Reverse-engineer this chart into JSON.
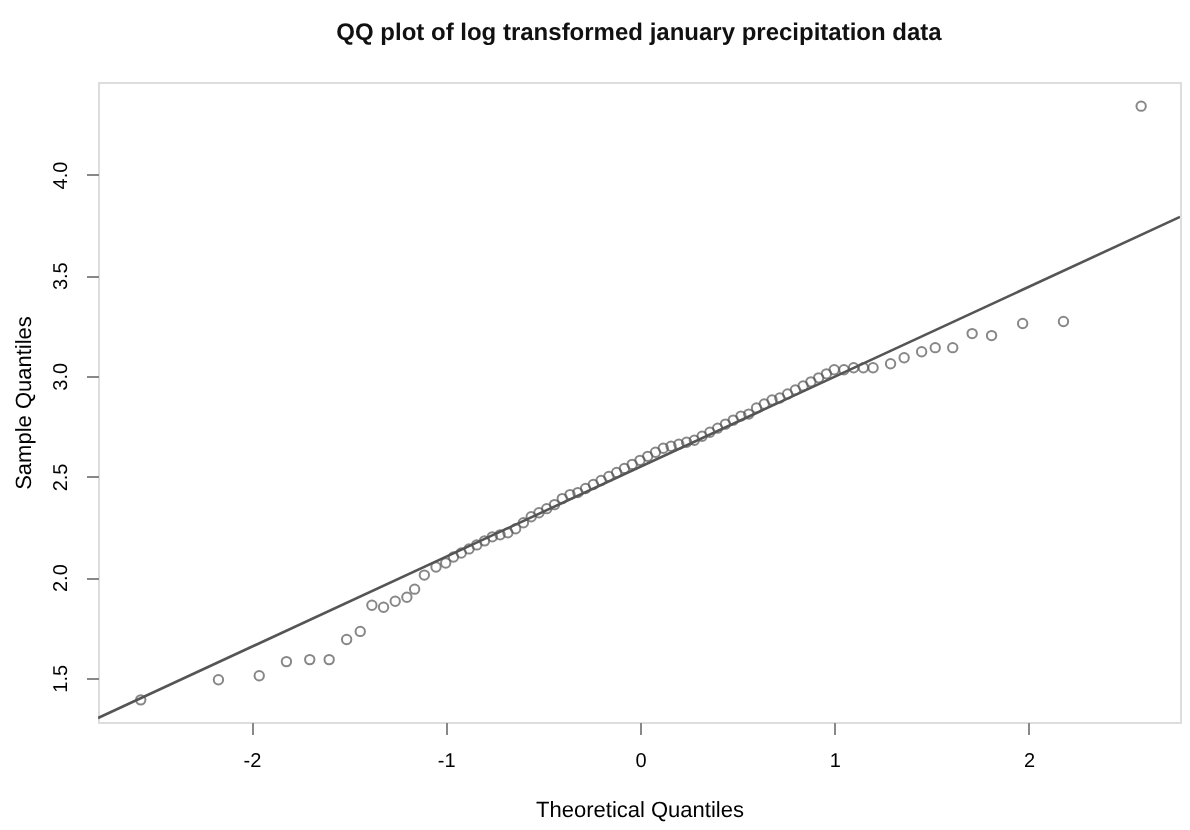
{
  "chart_data": {
    "type": "scatter",
    "title": "QQ plot of log transformed january precipitation data",
    "xlabel": "Theoretical Quantiles",
    "ylabel": "Sample Quantiles",
    "xlim": [
      -2.79,
      2.78
    ],
    "ylim": [
      1.28,
      4.46
    ],
    "xticks": [
      -2,
      -1,
      0,
      1,
      2
    ],
    "yticks": [
      1.5,
      {
        "value": 2,
        "label": "2.0"
      },
      2.5,
      {
        "value": 3,
        "label": "3.0"
      },
      3.5,
      {
        "value": 4,
        "label": "4.0"
      }
    ],
    "grid": false,
    "series": [
      {
        "type": "scatter",
        "marker": "circle",
        "color": "#555555",
        "x": [
          -2.57,
          -2.17,
          -1.96,
          -1.82,
          -1.7,
          -1.6,
          -1.51,
          -1.44,
          -1.38,
          -1.32,
          -1.26,
          -1.2,
          -1.16,
          -1.11,
          -1.05,
          -1.0,
          -0.96,
          -0.92,
          -0.88,
          -0.84,
          -0.8,
          -0.76,
          -0.72,
          -0.68,
          -0.64,
          -0.6,
          -0.56,
          -0.52,
          -0.48,
          -0.44,
          -0.4,
          -0.36,
          -0.32,
          -0.28,
          -0.24,
          -0.2,
          -0.16,
          -0.12,
          -0.08,
          -0.04,
          0.0,
          0.04,
          0.08,
          0.12,
          0.16,
          0.2,
          0.24,
          0.28,
          0.32,
          0.36,
          0.4,
          0.44,
          0.48,
          0.52,
          0.56,
          0.6,
          0.64,
          0.68,
          0.72,
          0.76,
          0.8,
          0.84,
          0.88,
          0.92,
          0.96,
          1.0,
          1.05,
          1.1,
          1.15,
          1.2,
          1.29,
          1.36,
          1.45,
          1.52,
          1.61,
          1.71,
          1.81,
          1.97,
          2.18,
          2.58
        ],
        "values": [
          1.39,
          1.49,
          1.51,
          1.58,
          1.59,
          1.59,
          1.69,
          1.73,
          1.86,
          1.85,
          1.88,
          1.9,
          1.94,
          2.01,
          2.05,
          2.07,
          2.1,
          2.12,
          2.14,
          2.16,
          2.18,
          2.2,
          2.21,
          2.22,
          2.24,
          2.27,
          2.3,
          2.32,
          2.34,
          2.36,
          2.39,
          2.41,
          2.42,
          2.44,
          2.46,
          2.48,
          2.5,
          2.52,
          2.54,
          2.56,
          2.58,
          2.6,
          2.62,
          2.64,
          2.65,
          2.66,
          2.67,
          2.68,
          2.7,
          2.72,
          2.74,
          2.76,
          2.78,
          2.8,
          2.81,
          2.84,
          2.86,
          2.88,
          2.89,
          2.91,
          2.93,
          2.95,
          2.97,
          2.99,
          3.01,
          3.03,
          3.03,
          3.04,
          3.04,
          3.04,
          3.06,
          3.09,
          3.12,
          3.14,
          3.14,
          3.21,
          3.2,
          3.26,
          3.27,
          4.34
        ]
      },
      {
        "type": "line",
        "marker": "none",
        "color": "#555555",
        "x": [
          -2.79,
          2.78
        ],
        "values": [
          1.3,
          3.79
        ]
      }
    ]
  }
}
